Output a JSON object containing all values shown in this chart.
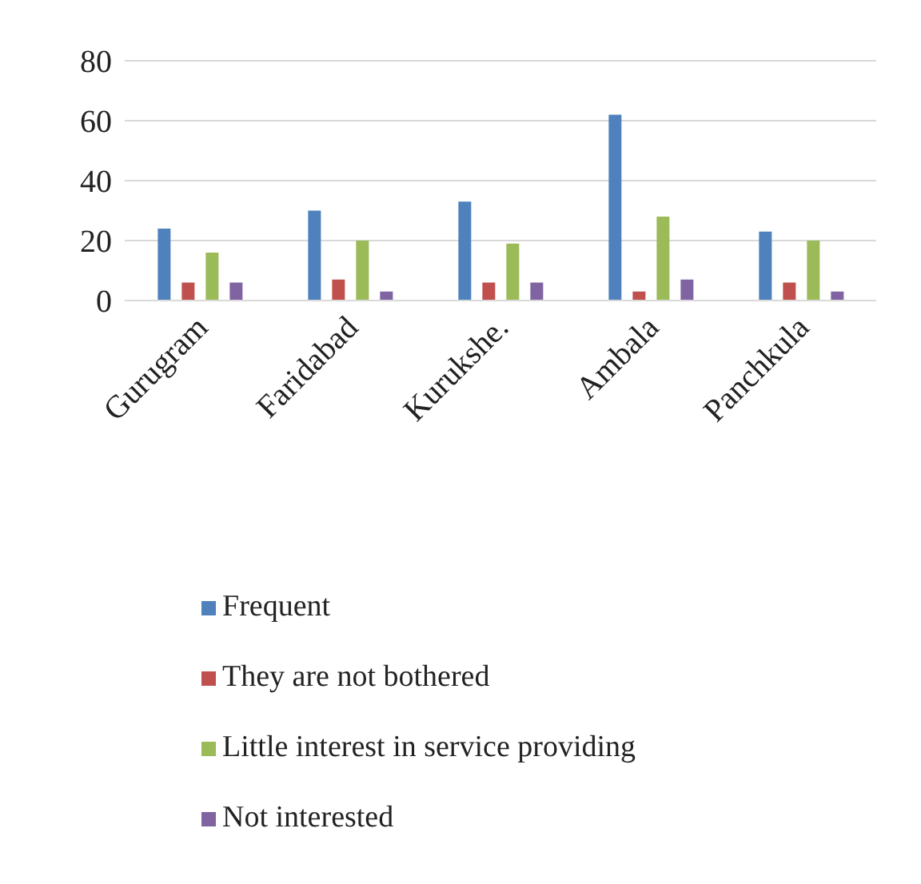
{
  "chart_data": {
    "type": "bar",
    "categories": [
      "Gurugram",
      "Faridabad",
      "Kurukshe.",
      "Ambala",
      "Panchkula"
    ],
    "series": [
      {
        "name": "Frequent",
        "color": "#4f81bd",
        "values": [
          24,
          30,
          33,
          62,
          23
        ]
      },
      {
        "name": "They are not bothered",
        "color": "#c0504d",
        "values": [
          6,
          7,
          6,
          3,
          6
        ]
      },
      {
        "name": "Little interest in service providing",
        "color": "#9bbb59",
        "values": [
          16,
          20,
          19,
          28,
          20
        ]
      },
      {
        "name": "Not interested",
        "color": "#8064a2",
        "values": [
          6,
          3,
          6,
          7,
          3
        ]
      }
    ],
    "ylim": [
      0,
      80
    ],
    "yticks": [
      0,
      20,
      40,
      60,
      80
    ],
    "grid": "y",
    "legend": "bottom"
  }
}
